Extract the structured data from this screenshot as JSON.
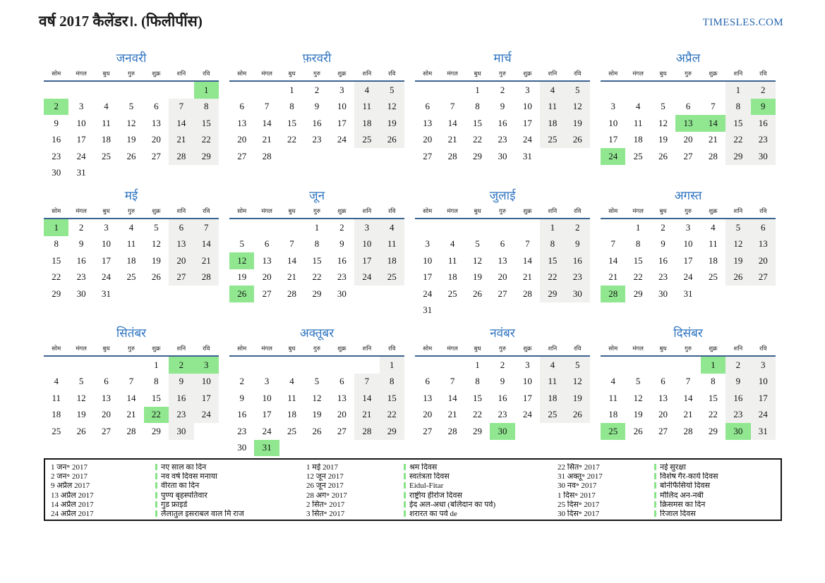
{
  "page": {
    "title": "वर्ष 2017 कैलेंडर।. (फिलीपींस)",
    "site": "TIMESLES.COM"
  },
  "colors": {
    "holiday_green": "#90e790",
    "weekend_gray": "#f0f0ef",
    "month_title_blue": "#2f74c0",
    "header_line_blue": "#3c6390",
    "site_blue": "#2565ae",
    "legend_tick_green": "#86e386"
  },
  "weekday_labels": [
    "सोम",
    "मंगल",
    "बुध",
    "गुरु",
    "शुक्र",
    "शनि",
    "रवि"
  ],
  "months": [
    {
      "name": "जनवरी",
      "holidays": [
        1,
        2
      ],
      "weeks": [
        [
          0,
          0,
          0,
          0,
          0,
          0,
          1
        ],
        [
          2,
          3,
          4,
          5,
          6,
          7,
          8
        ],
        [
          9,
          10,
          11,
          12,
          13,
          14,
          15
        ],
        [
          16,
          17,
          18,
          19,
          20,
          21,
          22
        ],
        [
          23,
          24,
          25,
          26,
          27,
          28,
          29
        ],
        [
          30,
          31,
          0,
          0,
          0,
          0,
          0
        ]
      ]
    },
    {
      "name": "फ़रवरी",
      "holidays": [],
      "weeks": [
        [
          0,
          0,
          1,
          2,
          3,
          4,
          5
        ],
        [
          6,
          7,
          8,
          9,
          10,
          11,
          12
        ],
        [
          13,
          14,
          15,
          16,
          17,
          18,
          19
        ],
        [
          20,
          21,
          22,
          23,
          24,
          25,
          26
        ],
        [
          27,
          28,
          0,
          0,
          0,
          0,
          0
        ]
      ]
    },
    {
      "name": "मार्च",
      "holidays": [],
      "weeks": [
        [
          0,
          0,
          1,
          2,
          3,
          4,
          5
        ],
        [
          6,
          7,
          8,
          9,
          10,
          11,
          12
        ],
        [
          13,
          14,
          15,
          16,
          17,
          18,
          19
        ],
        [
          20,
          21,
          22,
          23,
          24,
          25,
          26
        ],
        [
          27,
          28,
          29,
          30,
          31,
          0,
          0
        ]
      ]
    },
    {
      "name": "अप्रैल",
      "holidays": [
        9,
        13,
        14,
        24
      ],
      "weeks": [
        [
          0,
          0,
          0,
          0,
          0,
          1,
          2
        ],
        [
          3,
          4,
          5,
          6,
          7,
          8,
          9
        ],
        [
          10,
          11,
          12,
          13,
          14,
          15,
          16
        ],
        [
          17,
          18,
          19,
          20,
          21,
          22,
          23
        ],
        [
          24,
          25,
          26,
          27,
          28,
          29,
          30
        ]
      ]
    },
    {
      "name": "मई",
      "holidays": [
        1
      ],
      "weeks": [
        [
          1,
          2,
          3,
          4,
          5,
          6,
          7
        ],
        [
          8,
          9,
          10,
          11,
          12,
          13,
          14
        ],
        [
          15,
          16,
          17,
          18,
          19,
          20,
          21
        ],
        [
          22,
          23,
          24,
          25,
          26,
          27,
          28
        ],
        [
          29,
          30,
          31,
          0,
          0,
          0,
          0
        ]
      ]
    },
    {
      "name": "जून",
      "holidays": [
        12,
        26
      ],
      "weeks": [
        [
          0,
          0,
          0,
          1,
          2,
          3,
          4
        ],
        [
          5,
          6,
          7,
          8,
          9,
          10,
          11
        ],
        [
          12,
          13,
          14,
          15,
          16,
          17,
          18
        ],
        [
          19,
          20,
          21,
          22,
          23,
          24,
          25
        ],
        [
          26,
          27,
          28,
          29,
          30,
          0,
          0
        ]
      ]
    },
    {
      "name": "जुलाई",
      "holidays": [],
      "weeks": [
        [
          0,
          0,
          0,
          0,
          0,
          1,
          2
        ],
        [
          3,
          4,
          5,
          6,
          7,
          8,
          9
        ],
        [
          10,
          11,
          12,
          13,
          14,
          15,
          16
        ],
        [
          17,
          18,
          19,
          20,
          21,
          22,
          23
        ],
        [
          24,
          25,
          26,
          27,
          28,
          29,
          30
        ],
        [
          31,
          0,
          0,
          0,
          0,
          0,
          0
        ]
      ]
    },
    {
      "name": "अगस्त",
      "holidays": [
        28
      ],
      "weeks": [
        [
          0,
          1,
          2,
          3,
          4,
          5,
          6
        ],
        [
          7,
          8,
          9,
          10,
          11,
          12,
          13
        ],
        [
          14,
          15,
          16,
          17,
          18,
          19,
          20
        ],
        [
          21,
          22,
          23,
          24,
          25,
          26,
          27
        ],
        [
          28,
          29,
          30,
          31,
          0,
          0,
          0
        ]
      ]
    },
    {
      "name": "सितंबर",
      "holidays": [
        2,
        3,
        22
      ],
      "weeks": [
        [
          0,
          0,
          0,
          0,
          1,
          2,
          3
        ],
        [
          4,
          5,
          6,
          7,
          8,
          9,
          10
        ],
        [
          11,
          12,
          13,
          14,
          15,
          16,
          17
        ],
        [
          18,
          19,
          20,
          21,
          22,
          23,
          24
        ],
        [
          25,
          26,
          27,
          28,
          29,
          30,
          0
        ]
      ]
    },
    {
      "name": "अक्तूबर",
      "holidays": [
        31
      ],
      "weeks": [
        [
          0,
          0,
          0,
          0,
          0,
          0,
          1
        ],
        [
          2,
          3,
          4,
          5,
          6,
          7,
          8
        ],
        [
          9,
          10,
          11,
          12,
          13,
          14,
          15
        ],
        [
          16,
          17,
          18,
          19,
          20,
          21,
          22
        ],
        [
          23,
          24,
          25,
          26,
          27,
          28,
          29
        ],
        [
          30,
          31,
          0,
          0,
          0,
          0,
          0
        ]
      ]
    },
    {
      "name": "नवंबर",
      "holidays": [
        30
      ],
      "weeks": [
        [
          0,
          0,
          1,
          2,
          3,
          4,
          5
        ],
        [
          6,
          7,
          8,
          9,
          10,
          11,
          12
        ],
        [
          13,
          14,
          15,
          16,
          17,
          18,
          19
        ],
        [
          20,
          21,
          22,
          23,
          24,
          25,
          26
        ],
        [
          27,
          28,
          29,
          30,
          0,
          0,
          0
        ]
      ]
    },
    {
      "name": "दिसंबर",
      "holidays": [
        1,
        25,
        30
      ],
      "weeks": [
        [
          0,
          0,
          0,
          0,
          1,
          2,
          3
        ],
        [
          4,
          5,
          6,
          7,
          8,
          9,
          10
        ],
        [
          11,
          12,
          13,
          14,
          15,
          16,
          17
        ],
        [
          18,
          19,
          20,
          21,
          22,
          23,
          24
        ],
        [
          25,
          26,
          27,
          28,
          29,
          30,
          31
        ]
      ]
    }
  ],
  "legend": {
    "columns": [
      [
        {
          "date": "1 जन॰ 2017",
          "name": "नए साल का दिन"
        },
        {
          "date": "2 जन॰ 2017",
          "name": "नव वर्ष दिवस मनाया"
        },
        {
          "date": "9 अप्रैल 2017",
          "name": "वीरता का दिन"
        },
        {
          "date": "13 अप्रैल 2017",
          "name": "पुण्य बृहस्पतिवार"
        },
        {
          "date": "14 अप्रैल 2017",
          "name": "गुड फ्राइडे"
        },
        {
          "date": "24 अप्रैल 2017",
          "name": "लैलातुल इसराबल वाल मि राज"
        }
      ],
      [
        {
          "date": "1 मई 2017",
          "name": "श्रम दिवस"
        },
        {
          "date": "12 जून 2017",
          "name": "स्वतंत्रता दिवस"
        },
        {
          "date": "26 जून 2017",
          "name": "Eidul-Fitar"
        },
        {
          "date": "28 अग॰ 2017",
          "name": "राष्ट्रीय हीरोज दिवस"
        },
        {
          "date": "2 सित॰ 2017",
          "name": "ईद अल-अधा (बलिदान का पर्व)"
        },
        {
          "date": "3 सित॰ 2017",
          "name": "शरारत का पर्व de"
        }
      ],
      [
        {
          "date": "22 सित॰ 2017",
          "name": "नई सुरक्षा"
        },
        {
          "date": "31 अक्तू॰ 2017",
          "name": "विशेष गैर-कार्य दिवस"
        },
        {
          "date": "30 नव॰ 2017",
          "name": "बोनीफैसियो दिवस"
        },
        {
          "date": "1 दिस॰ 2017",
          "name": "मौलिद अन-नबी"
        },
        {
          "date": "25 दिस॰ 2017",
          "name": "क्रिसमस का दिन"
        },
        {
          "date": "30 दिस॰ 2017",
          "name": "रिजाल दिवस"
        }
      ]
    ]
  }
}
